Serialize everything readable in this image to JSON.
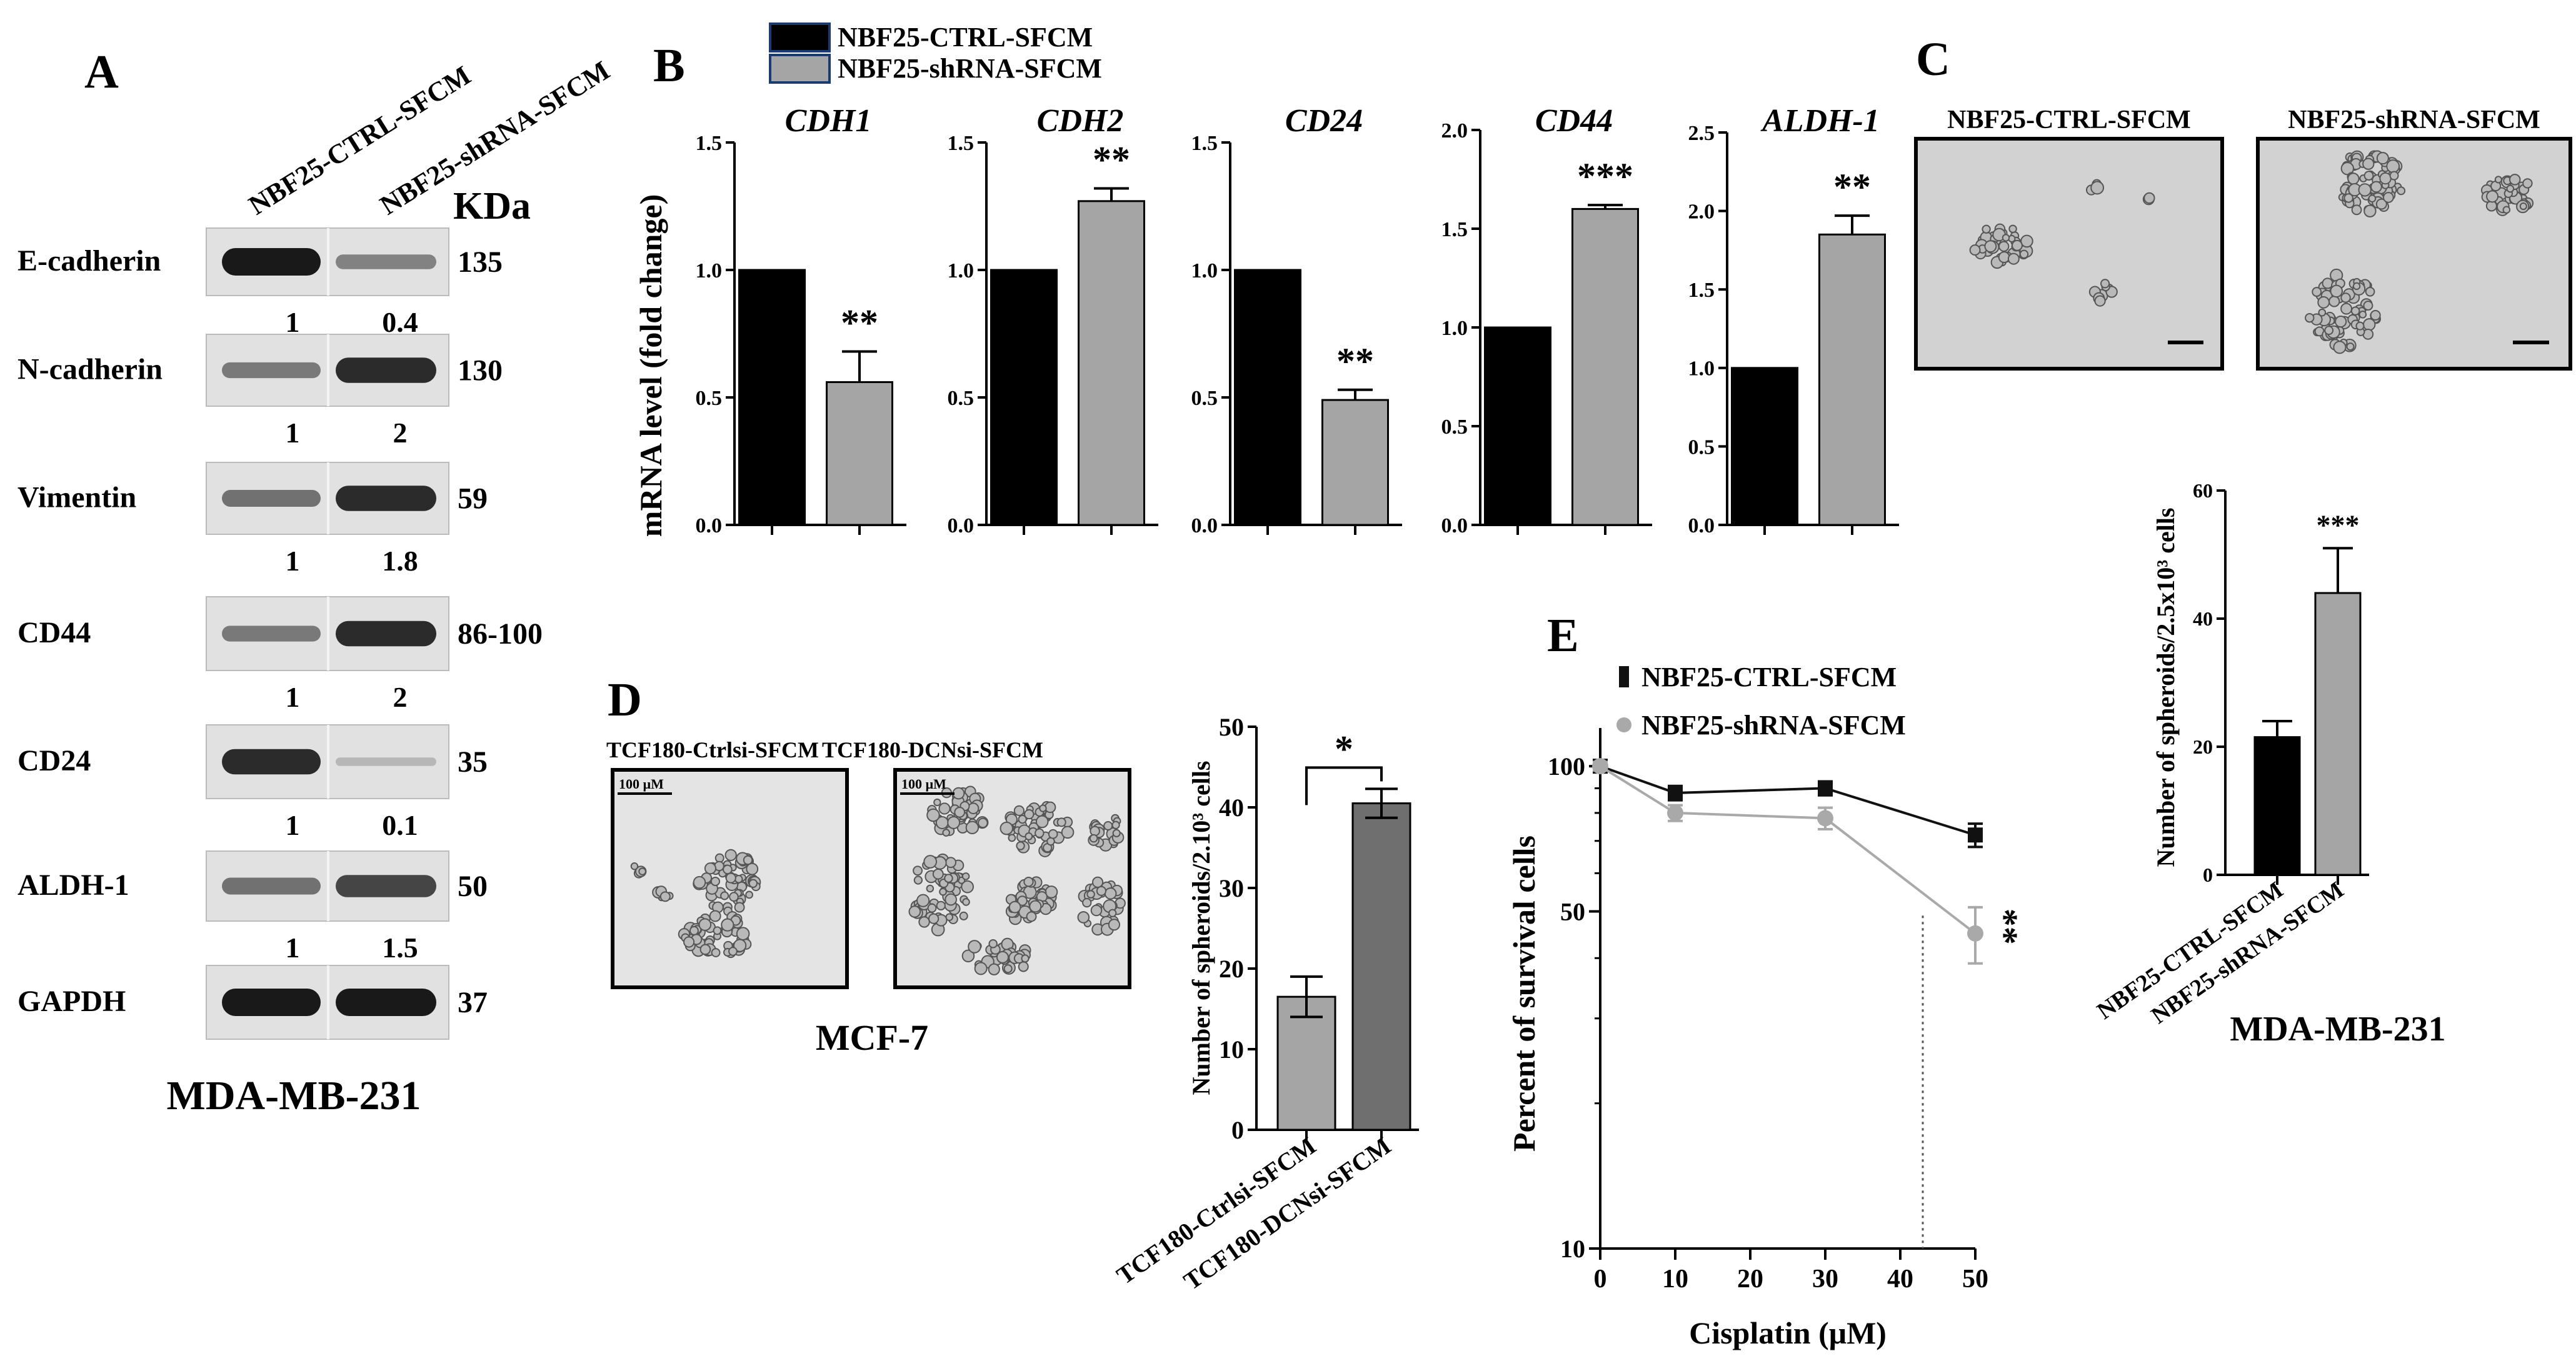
{
  "colors": {
    "control": "#000000",
    "treated": "#a5a5a5",
    "treated_dark": "#6f6f6f",
    "line_ctrl": "#111111",
    "line_sh": "#a9a9a9",
    "micro_bg": "#cfcfcf",
    "band": "#1a1a1a"
  },
  "panel_a": {
    "letter": "A",
    "lane_labels": [
      "NBF25-CTRL-SFCM",
      "NBF25-shRNA-SFCM"
    ],
    "kda_label": "KDa",
    "cell_line": "MDA-MB-231",
    "blots": [
      {
        "protein": "E-cadherin",
        "kda": "135",
        "quant": [
          "1",
          "0.4"
        ],
        "intensity": [
          1.0,
          0.4
        ]
      },
      {
        "protein": "N-cadherin",
        "kda": "130",
        "quant": [
          "1",
          "2"
        ],
        "intensity": [
          0.45,
          0.9
        ]
      },
      {
        "protein": "Vimentin",
        "kda": "59",
        "quant": [
          "1",
          "1.8"
        ],
        "intensity": [
          0.5,
          0.9
        ]
      },
      {
        "protein": "CD44",
        "kda": "86-100",
        "quant": [
          "1",
          "2"
        ],
        "intensity": [
          0.45,
          0.9
        ]
      },
      {
        "protein": "CD24",
        "kda": "35",
        "quant": [
          "1",
          "0.1"
        ],
        "intensity": [
          0.9,
          0.1
        ]
      },
      {
        "protein": "ALDH-1",
        "kda": "50",
        "quant": [
          "1",
          "1.5"
        ],
        "intensity": [
          0.5,
          0.75
        ]
      },
      {
        "protein": "GAPDH",
        "kda": "37",
        "quant": null,
        "intensity": [
          1.0,
          1.0
        ]
      }
    ]
  },
  "panel_b": {
    "letter": "B",
    "legend": [
      "NBF25-CTRL-SFCM",
      "NBF25-shRNA-SFCM"
    ],
    "ylabel": "mRNA level (fold change)"
  },
  "panel_c": {
    "letter": "C",
    "image_labels": [
      "NBF25-CTRL-SFCM",
      "NBF25-shRNA-SFCM"
    ],
    "cell_line": "MDA-MB-231"
  },
  "panel_d": {
    "letter": "D",
    "image_labels": [
      "TCF180-Ctrlsi-SFCM",
      "TCF180-DCNsi-SFCM"
    ],
    "scale_text": "100 µM",
    "cell_line": "MCF-7"
  },
  "panel_e": {
    "letter": "E"
  },
  "chart_data": [
    {
      "id": "B-CDH1",
      "type": "bar",
      "title": "CDH1",
      "categories": [
        "NBF25-CTRL-SFCM",
        "NBF25-shRNA-SFCM"
      ],
      "values": [
        1.0,
        0.56
      ],
      "errors": [
        0,
        0.12
      ],
      "significance": "**",
      "ylim": [
        0,
        1.5
      ],
      "yticks": [
        "0.0",
        "0.5",
        "1.0",
        "1.5"
      ],
      "ylabel": "mRNA level (fold change)"
    },
    {
      "id": "B-CDH2",
      "type": "bar",
      "title": "CDH2",
      "categories": [
        "NBF25-CTRL-SFCM",
        "NBF25-shRNA-SFCM"
      ],
      "values": [
        1.0,
        1.27
      ],
      "errors": [
        0,
        0.05
      ],
      "significance": "**",
      "ylim": [
        0,
        1.5
      ],
      "yticks": [
        "0.0",
        "0.5",
        "1.0",
        "1.5"
      ],
      "ylabel": ""
    },
    {
      "id": "B-CD24",
      "type": "bar",
      "title": "CD24",
      "categories": [
        "NBF25-CTRL-SFCM",
        "NBF25-shRNA-SFCM"
      ],
      "values": [
        1.0,
        0.49
      ],
      "errors": [
        0,
        0.04
      ],
      "significance": "**",
      "ylim": [
        0,
        1.5
      ],
      "yticks": [
        "0.0",
        "0.5",
        "1.0",
        "1.5"
      ],
      "ylabel": ""
    },
    {
      "id": "B-CD44",
      "type": "bar",
      "title": "CD44",
      "categories": [
        "NBF25-CTRL-SFCM",
        "NBF25-shRNA-SFCM"
      ],
      "values": [
        1.0,
        1.6
      ],
      "errors": [
        0,
        0.02
      ],
      "significance": "***",
      "ylim": [
        0,
        2.0
      ],
      "yticks": [
        "0.0",
        "0.5",
        "1.0",
        "1.5",
        "2.0"
      ],
      "ylabel": ""
    },
    {
      "id": "B-ALDH1",
      "type": "bar",
      "title": "ALDH-1",
      "categories": [
        "NBF25-CTRL-SFCM",
        "NBF25-shRNA-SFCM"
      ],
      "values": [
        1.0,
        1.85
      ],
      "errors": [
        0,
        0.12
      ],
      "significance": "**",
      "ylim": [
        0,
        2.5
      ],
      "yticks": [
        "0.0",
        "0.5",
        "1.0",
        "1.5",
        "2.0",
        "2.5"
      ],
      "ylabel": ""
    },
    {
      "id": "C-spheroids",
      "type": "bar",
      "title": "",
      "categories": [
        "NBF25-CTRL-SFCM",
        "NBF25-shRNA-SFCM"
      ],
      "values": [
        21.5,
        44.0
      ],
      "errors": [
        2.5,
        7.0
      ],
      "significance": "***",
      "ylim": [
        0,
        60
      ],
      "yticks": [
        "0",
        "20",
        "40",
        "60"
      ],
      "ylabel": "Number of spheroids/2.5x10³ cells",
      "xlabel": "MDA-MB-231"
    },
    {
      "id": "D-spheroids",
      "type": "bar",
      "title": "",
      "categories": [
        "TCF180-Ctrlsi-SFCM",
        "TCF180-DCNsi-SFCM"
      ],
      "values": [
        16.5,
        40.5
      ],
      "errors": [
        2.5,
        1.8
      ],
      "significance": "*",
      "ylim": [
        0,
        50
      ],
      "yticks": [
        "0",
        "10",
        "20",
        "30",
        "40",
        "50"
      ],
      "ylabel": "Number of spheroids/2.10³ cells"
    },
    {
      "id": "E-survival",
      "type": "line",
      "title": "",
      "xlabel": "Cisplatin (μM)",
      "ylabel": "Percent of survival cells",
      "yscale": "log",
      "ylim": [
        10,
        120
      ],
      "xlim": [
        0,
        50
      ],
      "xticks": [
        "0",
        "10",
        "20",
        "30",
        "40",
        "50"
      ],
      "yticks": [
        "10",
        "50",
        "100"
      ],
      "x": [
        0,
        10,
        30,
        50
      ],
      "series": [
        {
          "name": "NBF25-CTRL-SFCM",
          "values": [
            100,
            88,
            90,
            72
          ],
          "errors": [
            2,
            3,
            3,
            4
          ],
          "marker": "square"
        },
        {
          "name": "NBF25-shRNA-SFCM",
          "values": [
            100,
            80,
            78,
            45
          ],
          "errors": [
            2,
            3,
            4,
            6
          ],
          "marker": "circle"
        }
      ],
      "significance": "**",
      "ic50_x": 43
    }
  ]
}
